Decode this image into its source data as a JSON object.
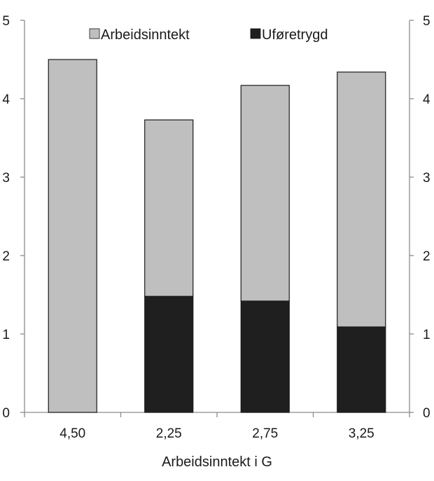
{
  "chart_data": {
    "type": "bar",
    "stacked": true,
    "categories": [
      "4,50",
      "2,25",
      "2,75",
      "3,25"
    ],
    "series": [
      {
        "name": "Uføretrygd",
        "values": [
          0,
          1.48,
          1.42,
          1.09
        ]
      },
      {
        "name": "Arbeidsinntekt",
        "values": [
          4.5,
          2.25,
          2.75,
          3.25
        ]
      }
    ],
    "xlabel": "Arbeidsinntekt i G",
    "ylabel": "",
    "ylim": [
      0,
      5
    ],
    "yticks": [
      "0",
      "1",
      "2",
      "3",
      "4",
      "5"
    ],
    "secondary_yticks": [
      "0",
      "1",
      "2",
      "3",
      "4",
      "5"
    ],
    "grid": false,
    "legend_position": "top-center",
    "colors": {
      "Arbeidsinntekt": "#bfbfbf",
      "Uføretrygd": "#1f1f1f",
      "axis": "#8c8c8c"
    }
  },
  "legend": {
    "items": [
      {
        "label": "Arbeidsinntekt",
        "color": "#bfbfbf"
      },
      {
        "label": "Uføretrygd",
        "color": "#1f1f1f"
      }
    ]
  }
}
